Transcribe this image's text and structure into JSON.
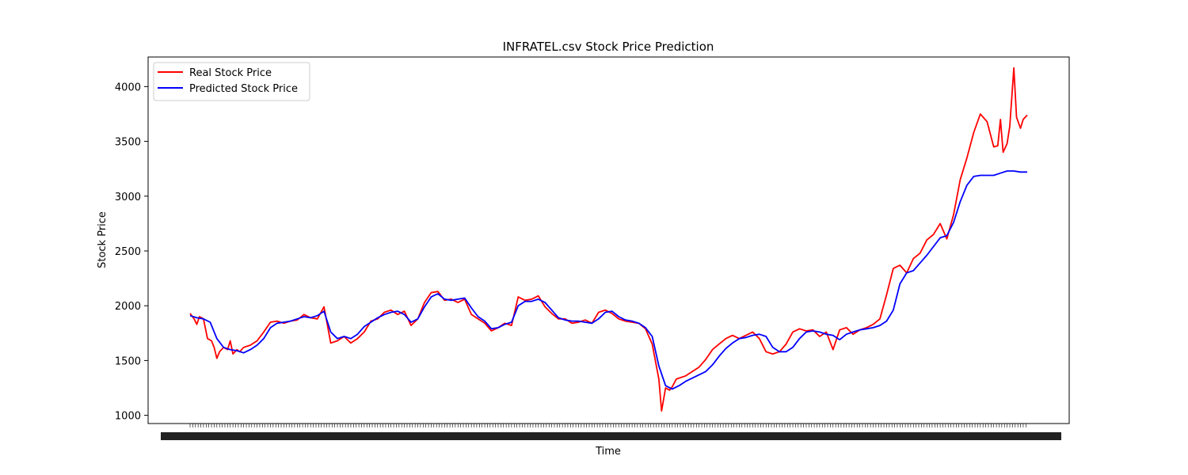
{
  "chart_data": {
    "type": "line",
    "title": "INFRATEL.csv Stock Price Prediction",
    "xlabel": "Time",
    "ylabel": "Stock Price",
    "ylim": [
      925,
      4270
    ],
    "yticks": [
      1000,
      1500,
      2000,
      2500,
      3000,
      3500,
      4000
    ],
    "grid": false,
    "legend_position": "top-left",
    "x_tick_labels_overlapping": true,
    "x_index_range": [
      0,
      625
    ],
    "series": [
      {
        "name": "Real Stock Price",
        "color": "#ff0000",
        "x": [
          0,
          3,
          5,
          7,
          10,
          13,
          16,
          18,
          20,
          22,
          25,
          28,
          30,
          32,
          35,
          37,
          40,
          45,
          50,
          55,
          60,
          65,
          70,
          75,
          80,
          85,
          90,
          95,
          100,
          105,
          110,
          115,
          120,
          125,
          130,
          135,
          140,
          145,
          150,
          155,
          160,
          165,
          170,
          175,
          180,
          185,
          190,
          195,
          200,
          205,
          210,
          215,
          220,
          225,
          230,
          235,
          240,
          245,
          250,
          255,
          260,
          265,
          270,
          275,
          280,
          285,
          290,
          295,
          300,
          305,
          310,
          315,
          320,
          325,
          330,
          335,
          340,
          345,
          350,
          352,
          355,
          358,
          360,
          363,
          365,
          370,
          375,
          380,
          385,
          390,
          395,
          400,
          405,
          410,
          415,
          420,
          425,
          430,
          435,
          440,
          445,
          450,
          455,
          460,
          465,
          470,
          475,
          480,
          485,
          490,
          495,
          500,
          505,
          510,
          515,
          520,
          525,
          530,
          535,
          540,
          545,
          550,
          555,
          560,
          565,
          570,
          575,
          580,
          585,
          590,
          595,
          600,
          603,
          605,
          607,
          610,
          612,
          615,
          617,
          620,
          622,
          625
        ],
        "y": [
          1930,
          1880,
          1830,
          1900,
          1880,
          1700,
          1680,
          1620,
          1520,
          1580,
          1620,
          1600,
          1680,
          1560,
          1600,
          1580,
          1620,
          1640,
          1680,
          1760,
          1850,
          1860,
          1840,
          1860,
          1870,
          1920,
          1890,
          1880,
          1990,
          1660,
          1680,
          1720,
          1660,
          1700,
          1760,
          1860,
          1880,
          1940,
          1960,
          1920,
          1950,
          1820,
          1880,
          2030,
          2120,
          2130,
          2050,
          2060,
          2030,
          2060,
          1920,
          1880,
          1840,
          1770,
          1800,
          1840,
          1820,
          2080,
          2050,
          2060,
          2090,
          1990,
          1930,
          1880,
          1880,
          1840,
          1850,
          1870,
          1840,
          1940,
          1960,
          1930,
          1880,
          1860,
          1850,
          1840,
          1790,
          1650,
          1330,
          1040,
          1250,
          1230,
          1260,
          1330,
          1340,
          1360,
          1400,
          1440,
          1510,
          1600,
          1650,
          1700,
          1730,
          1700,
          1730,
          1760,
          1700,
          1580,
          1560,
          1580,
          1650,
          1760,
          1790,
          1770,
          1780,
          1720,
          1760,
          1600,
          1780,
          1800,
          1740,
          1780,
          1800,
          1830,
          1880,
          2100,
          2340,
          2370,
          2300,
          2430,
          2480,
          2600,
          2650,
          2750,
          2610,
          2830,
          3150,
          3350,
          3580,
          3750,
          3680,
          3450,
          3460,
          3700,
          3400,
          3480,
          3640,
          4170,
          3720,
          3620,
          3700,
          3740
        ]
      },
      {
        "name": "Predicted Stock Price",
        "color": "#0000ff",
        "x": [
          0,
          5,
          10,
          15,
          20,
          25,
          30,
          35,
          40,
          45,
          50,
          55,
          60,
          65,
          70,
          75,
          80,
          85,
          90,
          95,
          100,
          105,
          110,
          115,
          120,
          125,
          130,
          135,
          140,
          145,
          150,
          155,
          160,
          165,
          170,
          175,
          180,
          185,
          190,
          195,
          200,
          205,
          210,
          215,
          220,
          225,
          230,
          235,
          240,
          245,
          250,
          255,
          260,
          265,
          270,
          275,
          280,
          285,
          290,
          295,
          300,
          305,
          310,
          315,
          320,
          325,
          330,
          335,
          340,
          345,
          350,
          355,
          360,
          365,
          370,
          375,
          380,
          385,
          390,
          395,
          400,
          405,
          410,
          415,
          420,
          425,
          430,
          435,
          440,
          445,
          450,
          455,
          460,
          465,
          470,
          475,
          480,
          485,
          490,
          495,
          500,
          505,
          510,
          515,
          520,
          525,
          530,
          535,
          540,
          545,
          550,
          555,
          560,
          565,
          570,
          575,
          580,
          585,
          590,
          595,
          600,
          605,
          610,
          615,
          620,
          625
        ],
        "y": [
          1910,
          1890,
          1880,
          1850,
          1700,
          1620,
          1600,
          1590,
          1570,
          1600,
          1640,
          1700,
          1800,
          1840,
          1850,
          1860,
          1880,
          1900,
          1890,
          1910,
          1950,
          1760,
          1700,
          1720,
          1700,
          1740,
          1810,
          1850,
          1890,
          1920,
          1940,
          1950,
          1920,
          1850,
          1880,
          1990,
          2080,
          2110,
          2060,
          2050,
          2060,
          2070,
          1980,
          1900,
          1860,
          1790,
          1800,
          1830,
          1850,
          2000,
          2040,
          2040,
          2060,
          2030,
          1960,
          1890,
          1870,
          1860,
          1860,
          1850,
          1840,
          1880,
          1940,
          1950,
          1900,
          1870,
          1860,
          1840,
          1800,
          1720,
          1450,
          1270,
          1240,
          1270,
          1310,
          1340,
          1370,
          1400,
          1460,
          1540,
          1610,
          1660,
          1700,
          1710,
          1730,
          1740,
          1720,
          1620,
          1580,
          1580,
          1620,
          1700,
          1760,
          1770,
          1760,
          1740,
          1730,
          1690,
          1740,
          1760,
          1780,
          1790,
          1800,
          1820,
          1860,
          1960,
          2200,
          2300,
          2320,
          2390,
          2460,
          2540,
          2620,
          2640,
          2760,
          2950,
          3100,
          3180,
          3190,
          3190,
          3190,
          3210,
          3230,
          3230,
          3220,
          3220
        ]
      }
    ]
  }
}
